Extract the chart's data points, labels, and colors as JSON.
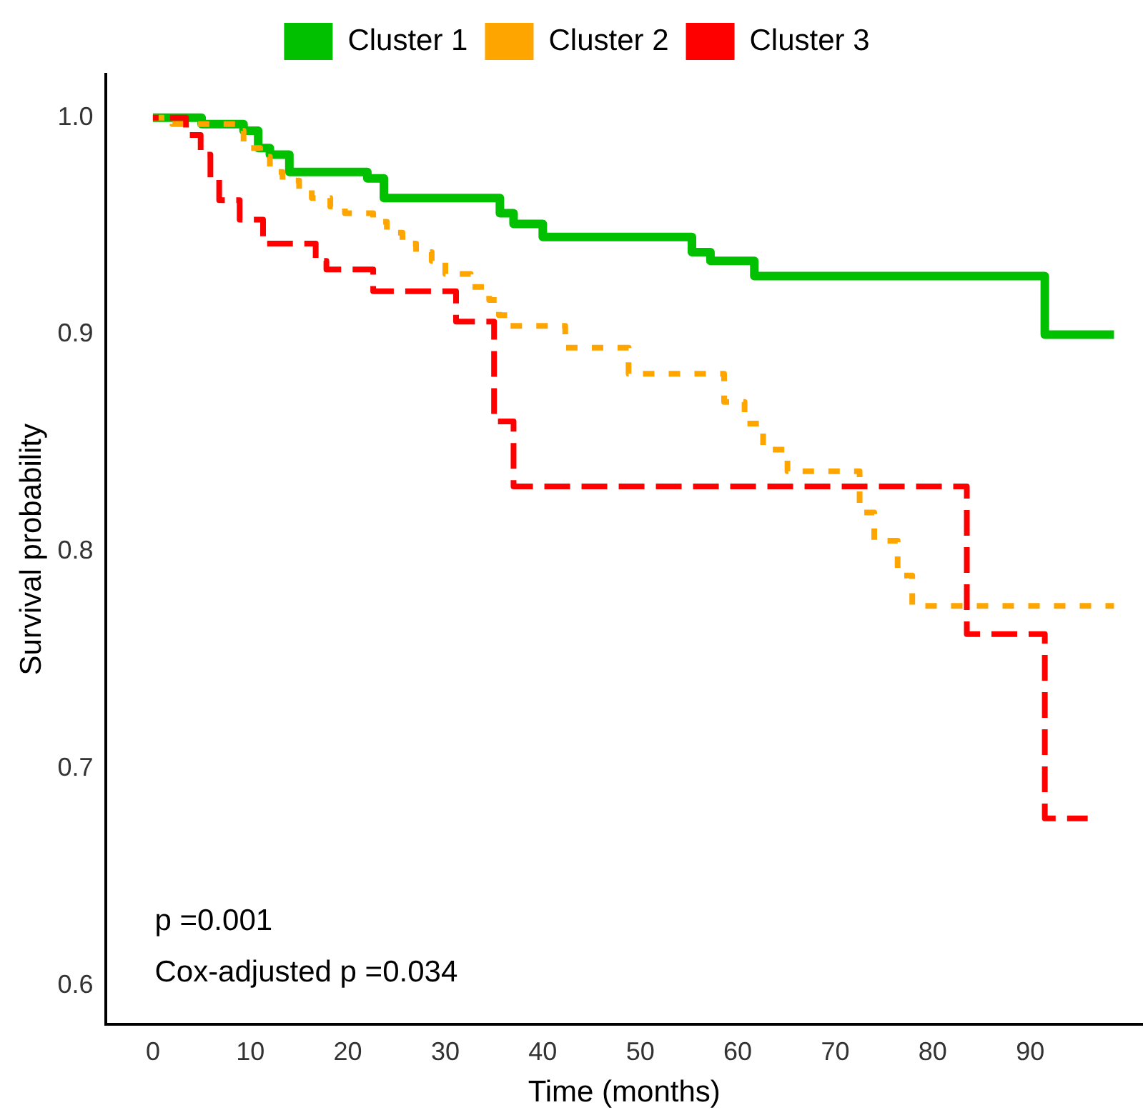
{
  "chart_data": {
    "type": "step",
    "xlabel": "Time (months)",
    "ylabel": "Survival probability",
    "legend": "top",
    "grid": false,
    "xlim": [
      -4.8,
      101.5
    ],
    "xticks": [
      0,
      10,
      20,
      30,
      40,
      50,
      60,
      70,
      80,
      90
    ],
    "ylim": [
      0.582,
      1.02
    ],
    "yticks": [
      0.6,
      0.7,
      0.8,
      0.9,
      {
        "value": 1,
        "label": "1.0"
      }
    ],
    "annotations": [
      "p =0.001",
      "Cox-adjusted p =0.034"
    ],
    "series": [
      {
        "name": "Cluster 1",
        "color": "#00c000",
        "line_style": "solid",
        "x": [
          0,
          5,
          9.3,
          10.8,
          12,
          14,
          22,
          23.7,
          35.6,
          37,
          40,
          55.3,
          57.2,
          61.7,
          91.5,
          98.6
        ],
        "values": [
          1,
          0.997,
          0.994,
          0.986,
          0.983,
          0.975,
          0.972,
          0.963,
          0.956,
          0.951,
          0.945,
          0.938,
          0.934,
          0.927,
          0.9,
          0.9
        ]
      },
      {
        "name": "Cluster 2",
        "color": "#ffa500",
        "line_style": "dotted",
        "x": [
          0,
          2,
          8.9,
          9.3,
          11,
          12,
          13.3,
          15,
          16.3,
          18.2,
          19.7,
          22.6,
          24,
          25.6,
          27,
          28.6,
          30,
          32.6,
          34.5,
          35.5,
          36.4,
          42.3,
          48.8,
          57.7,
          58.6,
          60.7,
          62.6,
          65.1,
          72.5,
          74,
          76.4,
          77.9,
          98.6
        ],
        "values": [
          1,
          0.997,
          0.994,
          0.986,
          0.982,
          0.975,
          0.971,
          0.967,
          0.963,
          0.959,
          0.956,
          0.952,
          0.947,
          0.942,
          0.938,
          0.934,
          0.928,
          0.922,
          0.916,
          0.909,
          0.904,
          0.894,
          0.882,
          0.882,
          0.869,
          0.859,
          0.847,
          0.837,
          0.818,
          0.805,
          0.789,
          0.775,
          0.775
        ]
      },
      {
        "name": "Cluster 3",
        "color": "#ff0000",
        "line_style": "dashed",
        "x": [
          0,
          3.4,
          4.9,
          5.9,
          6.8,
          8.9,
          11.3,
          16.7,
          17.8,
          22.6,
          31.1,
          35,
          37,
          83.5,
          91.5,
          95.9
        ],
        "values": [
          1,
          0.992,
          0.983,
          0.972,
          0.962,
          0.953,
          0.942,
          0.934,
          0.93,
          0.92,
          0.906,
          0.86,
          0.83,
          0.762,
          0.677,
          0.677
        ]
      }
    ]
  }
}
